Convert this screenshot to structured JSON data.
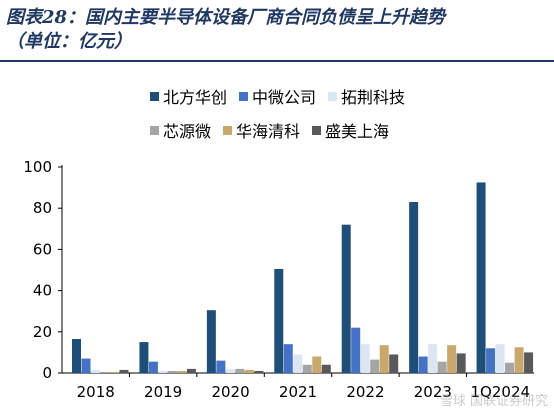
{
  "title_line1": "图表28：国内主要半导体设备厂商合同负债呈上升趋势",
  "title_line2": "（单位：亿元）",
  "watermark": "雪球 国联证券研究",
  "chart_data": {
    "type": "bar",
    "title": "图表28：国内主要半导体设备厂商合同负债呈上升趋势（单位：亿元）",
    "xlabel": "",
    "ylabel": "",
    "ylim": [
      0,
      100
    ],
    "yticks": [
      0,
      20,
      40,
      60,
      80,
      100
    ],
    "grid": false,
    "legend_position": "top",
    "categories": [
      "2018",
      "2019",
      "2020",
      "2021",
      "2022",
      "2023",
      "1Q2024"
    ],
    "series": [
      {
        "name": "北方华创",
        "color": "#1f4e79",
        "values": [
          16.5,
          15.0,
          30.5,
          50.5,
          72.0,
          83.0,
          92.5
        ]
      },
      {
        "name": "中微公司",
        "color": "#4472c4",
        "values": [
          7.0,
          5.5,
          6.0,
          14.0,
          22.0,
          8.0,
          12.0
        ]
      },
      {
        "name": "拓荆科技",
        "color": "#dce6f2",
        "values": [
          1.5,
          1.0,
          2.0,
          9.0,
          14.0,
          14.0,
          14.0
        ]
      },
      {
        "name": "芯源微",
        "color": "#a5a5a5",
        "values": [
          0.5,
          1.0,
          2.0,
          4.0,
          6.5,
          5.5,
          5.0
        ]
      },
      {
        "name": "华海清科",
        "color": "#c9a86b",
        "values": [
          0.5,
          1.0,
          1.5,
          8.0,
          13.5,
          13.5,
          12.5
        ]
      },
      {
        "name": "盛美上海",
        "color": "#595959",
        "values": [
          1.5,
          2.0,
          1.0,
          4.0,
          9.0,
          9.5,
          10.0
        ]
      }
    ]
  }
}
